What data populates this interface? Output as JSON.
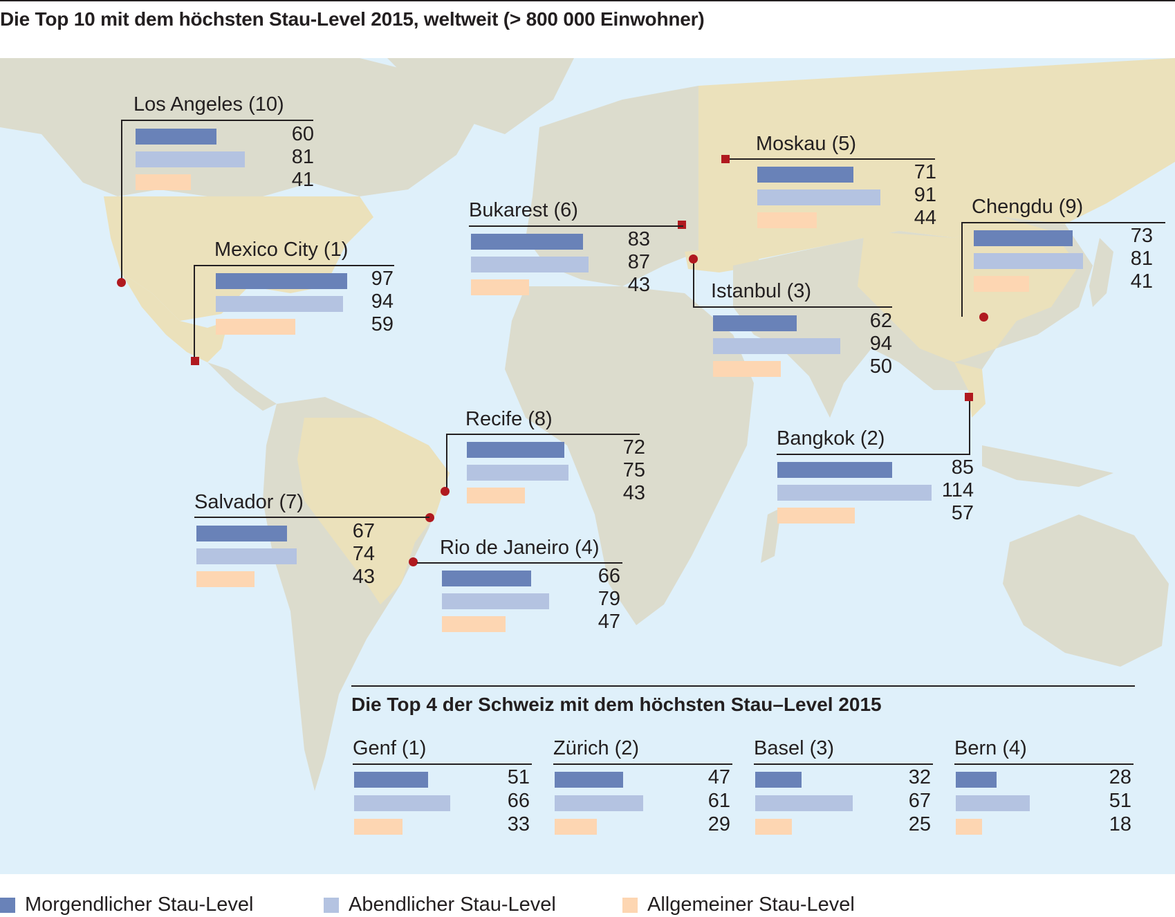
{
  "title": "Die Top 10 mit dem höchsten Stau-Level 2015, weltweit (> 800 000 Einwohner)",
  "colors": {
    "morning": "#6982b8",
    "evening": "#b4c3e1",
    "general": "#fdd6b2",
    "marker": "#b0191f",
    "ocean": "#dff0fa",
    "land": "#dcdccd",
    "highlight": "#ebe1bb"
  },
  "bar_scale_max": 114,
  "cities": [
    {
      "name": "Los Angeles (10)",
      "marker": "dot",
      "morning": "60",
      "evening": "81",
      "general": "41"
    },
    {
      "name": "Mexico City (1)",
      "marker": "square",
      "morning": "97",
      "evening": "94",
      "general": "59"
    },
    {
      "name": "Bukarest (6)",
      "marker": "square",
      "morning": "83",
      "evening": "87",
      "general": "43"
    },
    {
      "name": "Moskau (5)",
      "marker": "square",
      "morning": "71",
      "evening": "91",
      "general": "44"
    },
    {
      "name": "Chengdu (9)",
      "marker": "dot",
      "morning": "73",
      "evening": "81",
      "general": "41"
    },
    {
      "name": "Istanbul (3)",
      "marker": "dot",
      "morning": "62",
      "evening": "94",
      "general": "50"
    },
    {
      "name": "Bangkok (2)",
      "marker": "square",
      "morning": "85",
      "evening": "114",
      "general": "57"
    },
    {
      "name": "Recife (8)",
      "marker": "dot",
      "morning": "72",
      "evening": "75",
      "general": "43"
    },
    {
      "name": "Salvador (7)",
      "marker": "dot",
      "morning": "67",
      "evening": "74",
      "general": "43"
    },
    {
      "name": "Rio de Janeiro (4)",
      "marker": "dot",
      "morning": "66",
      "evening": "79",
      "general": "47"
    }
  ],
  "swiss": {
    "title": "Die Top 4 der Schweiz mit dem höchsten Stau–Level 2015",
    "cities": [
      {
        "name": "Genf (1)",
        "morning": "51",
        "evening": "66",
        "general": "33"
      },
      {
        "name": "Zürich (2)",
        "morning": "47",
        "evening": "61",
        "general": "29"
      },
      {
        "name": "Basel (3)",
        "morning": "32",
        "evening": "67",
        "general": "25"
      },
      {
        "name": "Bern (4)",
        "morning": "28",
        "evening": "51",
        "general": "18"
      }
    ]
  },
  "legend": [
    {
      "label": "Morgendlicher Stau-Level",
      "color": "#6982b8"
    },
    {
      "label": "Abendlicher Stau-Level",
      "color": "#b4c3e1"
    },
    {
      "label": "Allgemeiner Stau-Level",
      "color": "#fdd6b2"
    }
  ]
}
